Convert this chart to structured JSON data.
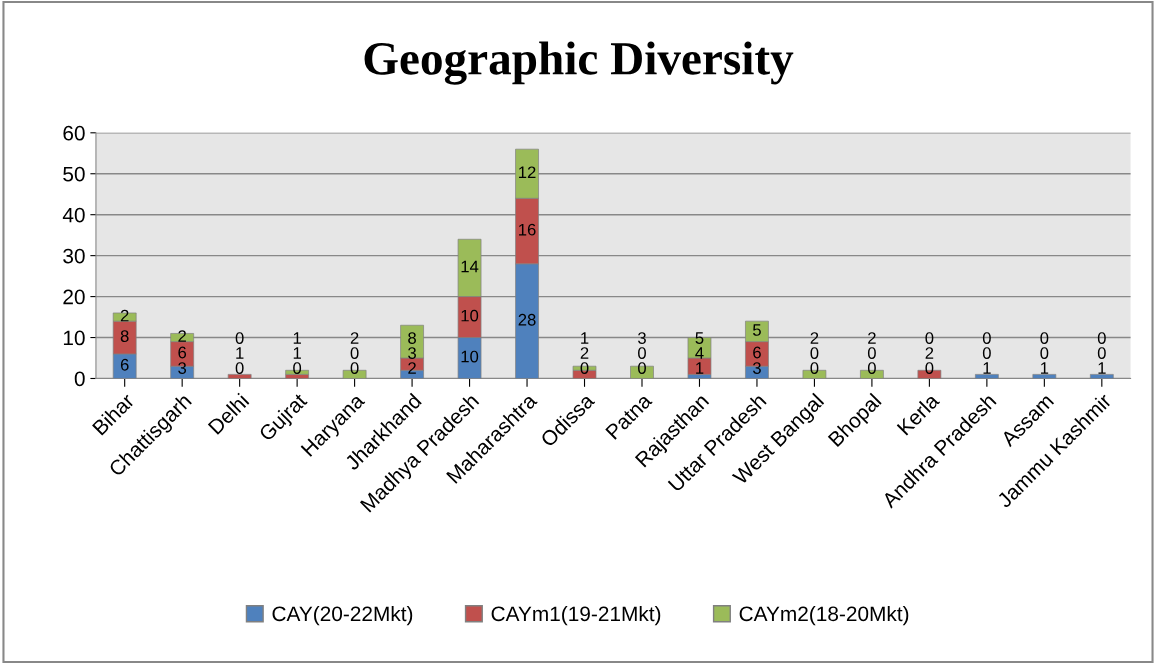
{
  "chart_data": {
    "type": "bar",
    "title": "Geographic Diversity",
    "stacked": true,
    "data_labels": true,
    "grid": "y",
    "legend": "bottom",
    "categories": [
      "Bihar",
      "Chattisgarh",
      "Delhi",
      "Gujrat",
      "Haryana",
      "Jharkhand",
      "Madhya Pradesh",
      "Maharashtra",
      "Odissa",
      "Patna",
      "Rajasthan",
      "Uttar Pradesh",
      "West Bangal",
      "Bhopal",
      "Kerla",
      "Andhra Pradesh",
      "Assam",
      "Jammu Kashmir"
    ],
    "ylim": [
      0,
      60
    ],
    "yticks": [
      0,
      10,
      20,
      30,
      40,
      50,
      60
    ],
    "series": [
      {
        "name": "CAY(20-22Mkt)",
        "color": "#4f81bd",
        "values": [
          6,
          3,
          0,
          0,
          0,
          2,
          10,
          28,
          0,
          0,
          1,
          3,
          0,
          0,
          0,
          1,
          1,
          1
        ]
      },
      {
        "name": "CAYm1(19-21Mkt)",
        "color": "#c0504d",
        "values": [
          8,
          6,
          1,
          1,
          0,
          3,
          10,
          16,
          2,
          0,
          4,
          6,
          0,
          0,
          2,
          0,
          0,
          0
        ]
      },
      {
        "name": "CAYm2(18-20Mkt)",
        "color": "#9bbb59",
        "values": [
          2,
          2,
          0,
          1,
          2,
          8,
          14,
          12,
          1,
          3,
          5,
          5,
          2,
          2,
          0,
          0,
          0,
          0
        ]
      }
    ]
  }
}
